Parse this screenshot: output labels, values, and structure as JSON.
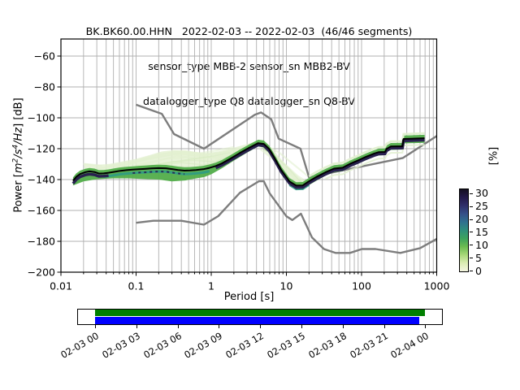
{
  "title": {
    "line1": "BK.BK60.00.HHN   2022-02-03 -- 2022-02-03  (46/46 segments)",
    "line2": "sensor_type MBB-2 sensor_sn MBB2-BV",
    "line3": "datalogger_type Q8 datalogger_sn Q8-BV"
  },
  "axes": {
    "xlabel": "Period [s]",
    "ylabel": {
      "p1": "Power [",
      "p2": "m",
      "p2s": "2",
      "p3": "/s",
      "p3s": "4",
      "p4": "/Hz",
      "p5": "] [dB]"
    }
  },
  "colorbar": {
    "label": "[%]",
    "ticks": [
      "30",
      "25",
      "20",
      "15",
      "10",
      "5",
      "0"
    ],
    "gradient_stops": [
      "#f5f5e1",
      "#dcedb4",
      "#a8d878",
      "#6cbc51",
      "#3da35c",
      "#2f8f7b",
      "#30718f",
      "#355088",
      "#30306b",
      "#241a4a",
      "#150f21"
    ]
  },
  "timeline": {
    "labels": [
      "02-03 00",
      "02-03 03",
      "02-03 06",
      "02-03 09",
      "02-03 12",
      "02-03 15",
      "02-03 18",
      "02-03 21",
      "02-04 00"
    ],
    "green_color": "#008000",
    "blue_color": "#0000ff",
    "green_frac": 1.0,
    "blue_frac": 0.981
  },
  "chart_data": {
    "type": "heatmap",
    "description": "Probabilistic power spectral density (PPSD) of BK.BK60.00.HHN with Peterson NLNM/NHNM noise models, mode line and percentage colorbar",
    "xscale": "log",
    "xlim": [
      0.01,
      1000
    ],
    "ylim": [
      -200,
      -49
    ],
    "x_tick_values": [
      0.01,
      0.1,
      1,
      10,
      100,
      1000
    ],
    "x_tick_labels": [
      "0.01",
      "0.1",
      "1",
      "10",
      "100",
      "1000"
    ],
    "y_tick_values": [
      -200,
      -180,
      -160,
      -140,
      -120,
      -100,
      -80,
      -60
    ],
    "y_tick_labels": [
      "−200",
      "−180",
      "−160",
      "−140",
      "−120",
      "−100",
      "−80",
      "−60"
    ],
    "grid": true,
    "colorbar_range": [
      0,
      30
    ],
    "colors": {
      "grid": "#b0b0b0",
      "noise_model": "#7d7d7d",
      "mode": "#000000",
      "green": "#52ad4a",
      "light": "#e2f0d0",
      "teal": "#2e9b85",
      "navy": "#29214f"
    },
    "nhnm": [
      [
        0.1,
        -91.5
      ],
      [
        0.22,
        -97.4
      ],
      [
        0.32,
        -110.5
      ],
      [
        0.8,
        -120.0
      ],
      [
        3.8,
        -98.0
      ],
      [
        4.6,
        -96.5
      ],
      [
        6.3,
        -101.0
      ],
      [
        7.9,
        -113.5
      ],
      [
        15.4,
        -120.0
      ],
      [
        20.0,
        -138.5
      ],
      [
        354.8,
        -126.0
      ],
      [
        1000,
        -111.8
      ]
    ],
    "nlnm": [
      [
        0.1,
        -168.0
      ],
      [
        0.17,
        -166.7
      ],
      [
        0.4,
        -166.7
      ],
      [
        0.8,
        -169.2
      ],
      [
        1.24,
        -163.7
      ],
      [
        2.4,
        -148.6
      ],
      [
        4.3,
        -141.1
      ],
      [
        5.0,
        -141.1
      ],
      [
        6.0,
        -149.0
      ],
      [
        10.0,
        -163.8
      ],
      [
        12.0,
        -166.2
      ],
      [
        15.6,
        -162.1
      ],
      [
        21.9,
        -177.5
      ],
      [
        31.6,
        -185.0
      ],
      [
        45.0,
        -187.5
      ],
      [
        70.0,
        -187.5
      ],
      [
        101.0,
        -185.0
      ],
      [
        154.0,
        -185.0
      ],
      [
        328.0,
        -187.5
      ],
      [
        600.0,
        -184.4
      ],
      [
        1000,
        -178.5
      ]
    ],
    "mode_line": [
      [
        0.0145,
        -140.8
      ],
      [
        0.016,
        -138.2
      ],
      [
        0.018,
        -136.4
      ],
      [
        0.021,
        -135.2
      ],
      [
        0.024,
        -134.7
      ],
      [
        0.028,
        -135.1
      ],
      [
        0.032,
        -136.1
      ],
      [
        0.037,
        -136.0
      ],
      [
        0.043,
        -135.6
      ],
      [
        0.051,
        -135.0
      ],
      [
        0.062,
        -134.3
      ],
      [
        0.075,
        -133.9
      ],
      [
        0.09,
        -133.6
      ],
      [
        0.11,
        -133.3
      ],
      [
        0.13,
        -133.1
      ],
      [
        0.16,
        -132.8
      ],
      [
        0.2,
        -132.6
      ],
      [
        0.25,
        -132.7
      ],
      [
        0.3,
        -133.2
      ],
      [
        0.36,
        -133.8
      ],
      [
        0.44,
        -134.2
      ],
      [
        0.52,
        -134.1
      ],
      [
        0.63,
        -133.8
      ],
      [
        0.78,
        -133.3
      ],
      [
        0.95,
        -132.4
      ],
      [
        1.15,
        -131.2
      ],
      [
        1.4,
        -129.4
      ],
      [
        1.8,
        -126.4
      ],
      [
        2.4,
        -122.8
      ],
      [
        3.2,
        -119.4
      ],
      [
        4.2,
        -116.4
      ],
      [
        5.0,
        -116.9
      ],
      [
        5.9,
        -120.2
      ],
      [
        6.8,
        -125.2
      ],
      [
        8.6,
        -134.0
      ],
      [
        11,
        -141.2
      ],
      [
        13.5,
        -143.9
      ],
      [
        16.5,
        -143.8
      ],
      [
        20,
        -141.1
      ],
      [
        25,
        -138.3
      ],
      [
        33,
        -135.3
      ],
      [
        43,
        -132.9
      ],
      [
        56,
        -132.3
      ],
      [
        72,
        -129.6
      ],
      [
        90,
        -127.6
      ],
      [
        115,
        -125.2
      ],
      [
        148,
        -123.1
      ],
      [
        170,
        -122.2
      ],
      [
        205,
        -122.1
      ],
      [
        215,
        -120.1
      ],
      [
        245,
        -118.5
      ],
      [
        350,
        -118.4
      ],
      [
        362,
        -113.7
      ],
      [
        690,
        -113.2
      ]
    ],
    "band_lower_envelope": [
      [
        0.0145,
        -143.8
      ],
      [
        0.02,
        -141.2
      ],
      [
        0.03,
        -139.8
      ],
      [
        0.05,
        -139.2
      ],
      [
        0.08,
        -139.2
      ],
      [
        0.12,
        -139.6
      ],
      [
        0.2,
        -140.0
      ],
      [
        0.3,
        -141.2
      ],
      [
        0.45,
        -140.6
      ],
      [
        0.6,
        -139.4
      ],
      [
        0.8,
        -138.4
      ],
      [
        1.0,
        -136.6
      ],
      [
        1.4,
        -132.6
      ],
      [
        2.0,
        -127.8
      ],
      [
        3.0,
        -122.6
      ],
      [
        4.2,
        -118.6
      ],
      [
        5.0,
        -119.2
      ],
      [
        5.9,
        -122.6
      ],
      [
        7.0,
        -128.0
      ],
      [
        8.6,
        -136.6
      ],
      [
        11,
        -143.6
      ],
      [
        13.5,
        -146.6
      ],
      [
        16.5,
        -146.4
      ],
      [
        20,
        -143.6
      ],
      [
        25,
        -140.8
      ],
      [
        33,
        -137.6
      ],
      [
        43,
        -135.2
      ],
      [
        56,
        -134.6
      ],
      [
        72,
        -131.8
      ],
      [
        90,
        -129.8
      ],
      [
        115,
        -127.4
      ],
      [
        148,
        -125.2
      ],
      [
        170,
        -124.4
      ],
      [
        205,
        -124.2
      ],
      [
        215,
        -122.2
      ],
      [
        245,
        -120.8
      ],
      [
        350,
        -120.6
      ],
      [
        362,
        -116.6
      ],
      [
        690,
        -116.2
      ]
    ],
    "band_upper_light_envelope": [
      [
        0.02,
        -129.5
      ],
      [
        0.03,
        -130.5
      ],
      [
        0.045,
        -129.8
      ],
      [
        0.07,
        -128.0
      ],
      [
        0.1,
        -126.6
      ],
      [
        0.15,
        -124.2
      ],
      [
        0.22,
        -121.8
      ],
      [
        0.32,
        -120.9
      ],
      [
        0.45,
        -121.0
      ],
      [
        0.6,
        -122.0
      ],
      [
        0.8,
        -122.8
      ],
      [
        1.0,
        -122.4
      ],
      [
        1.3,
        -121.6
      ],
      [
        1.9,
        -119.6
      ],
      [
        2.8,
        -117.4
      ],
      [
        4.2,
        -114.9
      ],
      [
        5.2,
        -115.8
      ],
      [
        6.5,
        -120.0
      ],
      [
        8.0,
        -125.4
      ],
      [
        10,
        -130.6
      ],
      [
        12.5,
        -135.4
      ],
      [
        15,
        -138.8
      ],
      [
        18,
        -141.2
      ],
      [
        20.5,
        -141.6
      ]
    ],
    "wisps_light": [
      [
        [
          0.04,
          -131.5
        ],
        [
          0.09,
          -128.5
        ],
        [
          0.2,
          -123.5
        ],
        [
          0.45,
          -122.0
        ],
        [
          0.8,
          -124.0
        ],
        [
          1.4,
          -122.6
        ],
        [
          2.5,
          -119.8
        ]
      ],
      [
        [
          0.05,
          -133.0
        ],
        [
          0.12,
          -127.5
        ],
        [
          0.28,
          -122.5
        ],
        [
          0.6,
          -124.5
        ],
        [
          1.1,
          -123.5
        ],
        [
          2.2,
          -120.5
        ]
      ],
      [
        [
          0.06,
          -134.5
        ],
        [
          0.15,
          -129.5
        ],
        [
          0.35,
          -124.5
        ],
        [
          0.7,
          -126.5
        ],
        [
          1.5,
          -125.0
        ],
        [
          3.0,
          -119.0
        ]
      ],
      [
        [
          0.03,
          -132.8
        ],
        [
          0.08,
          -130.0
        ],
        [
          0.18,
          -125.5
        ],
        [
          0.4,
          -123.0
        ],
        [
          0.9,
          -126.0
        ],
        [
          1.8,
          -123.8
        ]
      ],
      [
        [
          0.1,
          -130.5
        ],
        [
          0.25,
          -126.5
        ],
        [
          0.5,
          -125.5
        ],
        [
          1.0,
          -128.0
        ],
        [
          2.0,
          -124.5
        ]
      ],
      [
        [
          0.15,
          -127.0
        ],
        [
          0.3,
          -123.8
        ],
        [
          0.55,
          -123.0
        ],
        [
          1.2,
          -126.5
        ],
        [
          2.4,
          -122.0
        ]
      ],
      [
        [
          4.6,
          -118.5
        ],
        [
          7.0,
          -124.5
        ],
        [
          10,
          -131.0
        ],
        [
          14,
          -137.5
        ],
        [
          18,
          -141.0
        ]
      ],
      [
        [
          4.3,
          -119.5
        ],
        [
          6.5,
          -126.5
        ],
        [
          9.5,
          -133.5
        ],
        [
          13,
          -139.5
        ],
        [
          16,
          -142.5
        ]
      ],
      [
        [
          5.2,
          -117.5
        ],
        [
          8.0,
          -122.5
        ],
        [
          12,
          -129.5
        ],
        [
          17,
          -135.5
        ],
        [
          21,
          -139.5
        ]
      ],
      [
        [
          5.0,
          -121.0
        ],
        [
          7.5,
          -128.0
        ],
        [
          11,
          -135.0
        ],
        [
          15,
          -141.0
        ]
      ],
      [
        [
          0.02,
          -129.8
        ],
        [
          0.035,
          -131.0
        ]
      ],
      [
        [
          0.3,
          -121.5
        ],
        [
          0.7,
          -123.0
        ],
        [
          1.3,
          -120.8
        ],
        [
          2.0,
          -118.9
        ]
      ]
    ],
    "wisps_green": [
      [
        [
          0.05,
          -136.5
        ],
        [
          0.12,
          -132.0
        ],
        [
          0.3,
          -128.5
        ],
        [
          0.6,
          -127.5
        ],
        [
          1.1,
          -128.5
        ],
        [
          2.0,
          -124.0
        ]
      ],
      [
        [
          0.08,
          -134.5
        ],
        [
          0.2,
          -130.0
        ],
        [
          0.5,
          -127.0
        ],
        [
          1.0,
          -125.0
        ],
        [
          1.8,
          -122.5
        ]
      ],
      [
        [
          4.8,
          -119.5
        ],
        [
          7.5,
          -126.0
        ],
        [
          11,
          -133.5
        ],
        [
          14.5,
          -140.0
        ],
        [
          17,
          -143.0
        ]
      ],
      [
        [
          0.15,
          -131.5
        ],
        [
          0.4,
          -129.0
        ],
        [
          0.8,
          -130.5
        ],
        [
          1.6,
          -127.0
        ]
      ]
    ],
    "teal_ranges": [
      [
        0.035,
        1.1
      ],
      [
        9,
        22
      ]
    ],
    "navy_ranges_main": [
      [
        0.0145,
        0.05
      ],
      [
        1.1,
        690
      ]
    ],
    "navy_range_dashed": [
      0.09,
      0.45
    ],
    "light_stroke_above": [
      20,
      690
    ],
    "light_stroke_below": [
      28,
      690
    ]
  }
}
